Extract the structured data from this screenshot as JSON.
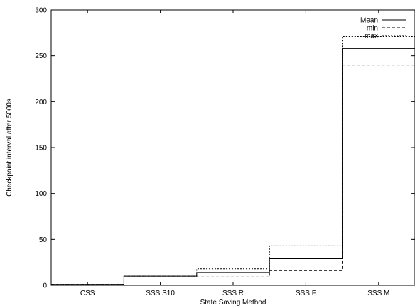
{
  "chart_data": {
    "type": "step",
    "title": "",
    "xlabel": "State Saving Method",
    "ylabel": "Checkpoint interval after 5000s",
    "categories": [
      "CSS",
      "SSS S10",
      "SSS R",
      "SSS F",
      "SSS M"
    ],
    "ylim": [
      0,
      300
    ],
    "yticks": [
      0,
      50,
      100,
      150,
      200,
      250,
      300
    ],
    "grid": false,
    "legend_position": "top-right",
    "series": [
      {
        "name": "Mean",
        "style": "solid",
        "values": [
          1,
          10,
          14,
          29,
          258
        ]
      },
      {
        "name": "min",
        "style": "dashed",
        "values": [
          1,
          10,
          9,
          16,
          240
        ]
      },
      {
        "name": "max",
        "style": "dotted",
        "values": [
          1,
          10,
          18,
          43,
          271
        ]
      }
    ]
  }
}
